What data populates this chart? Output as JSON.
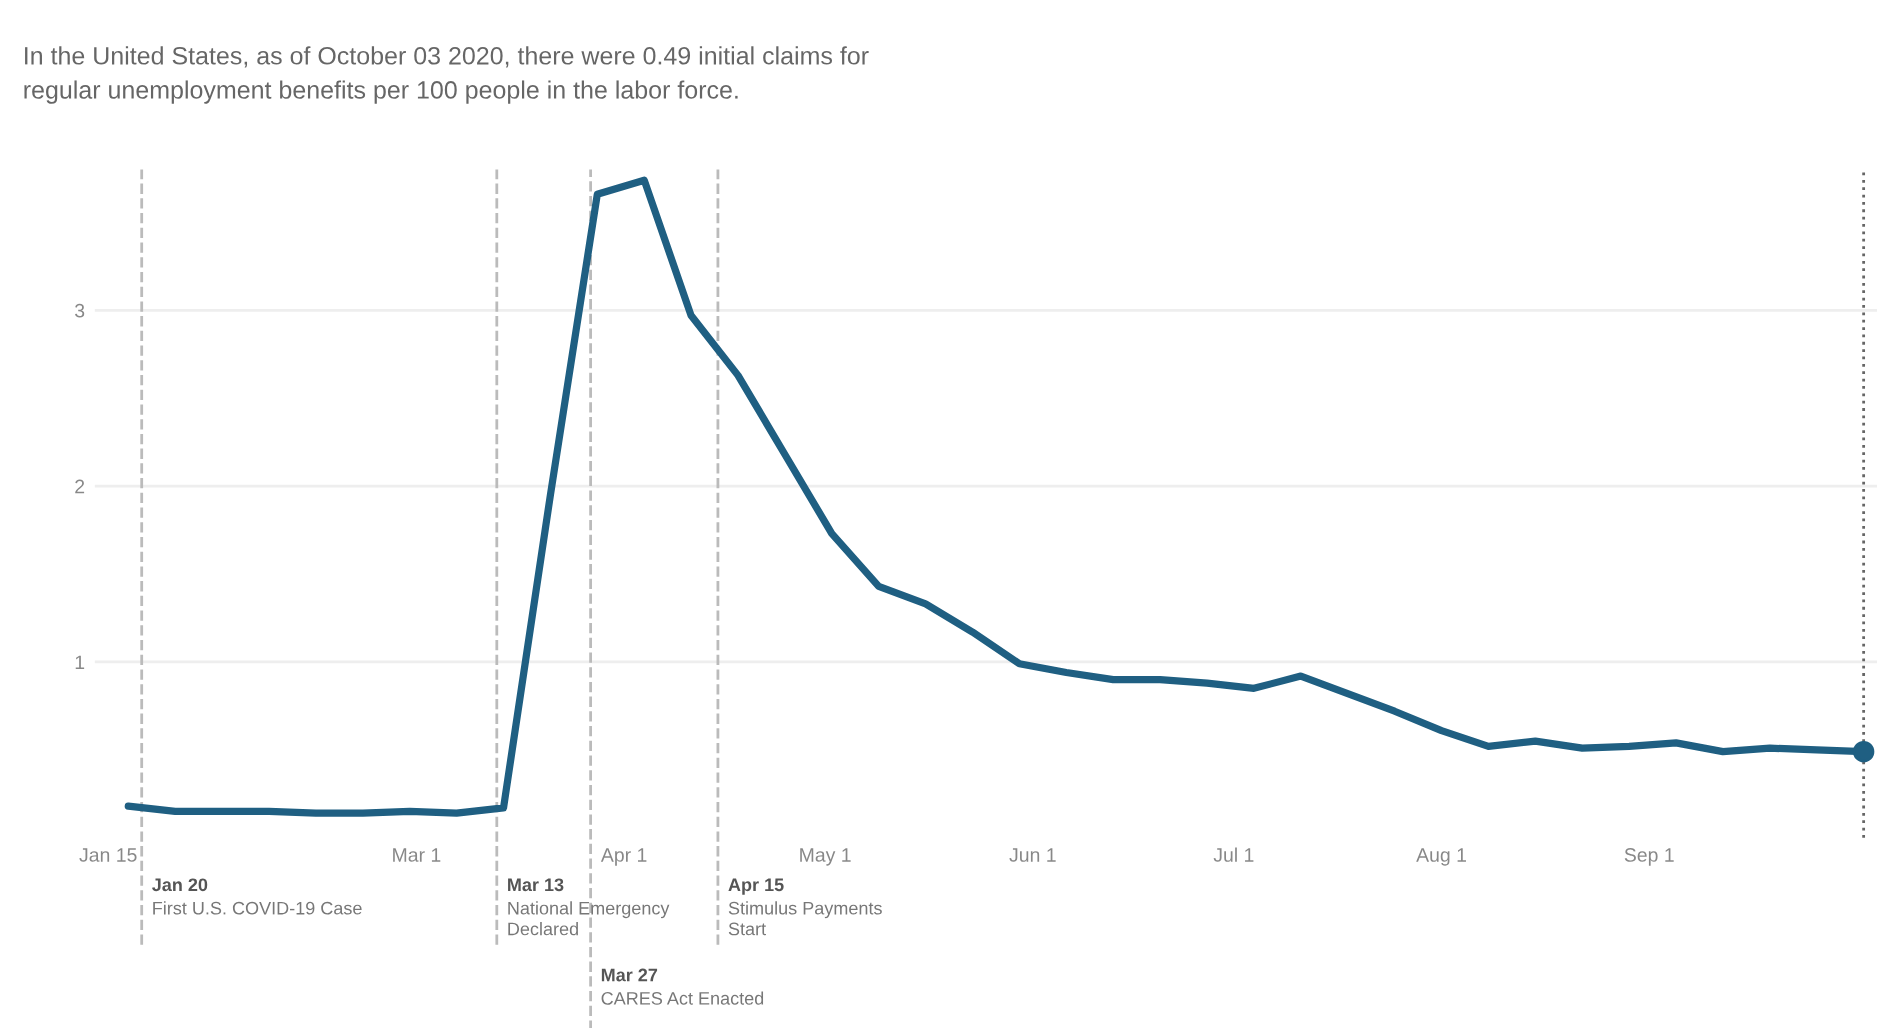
{
  "chart_data": {
    "type": "line",
    "title": "In the United States, as of October 03 2020, there were 0.49 initial claims for\nregular unemployment benefits per 100 people in the labor force.",
    "x": [
      "2020-01-18",
      "2020-01-25",
      "2020-02-01",
      "2020-02-08",
      "2020-02-15",
      "2020-02-22",
      "2020-02-29",
      "2020-03-07",
      "2020-03-14",
      "2020-03-21",
      "2020-03-28",
      "2020-04-04",
      "2020-04-11",
      "2020-04-18",
      "2020-04-25",
      "2020-05-02",
      "2020-05-09",
      "2020-05-16",
      "2020-05-23",
      "2020-05-30",
      "2020-06-06",
      "2020-06-13",
      "2020-06-20",
      "2020-06-27",
      "2020-07-04",
      "2020-07-11",
      "2020-07-18",
      "2020-07-25",
      "2020-08-01",
      "2020-08-08",
      "2020-08-15",
      "2020-08-22",
      "2020-08-29",
      "2020-09-05",
      "2020-09-12",
      "2020-09-19",
      "2020-09-26",
      "2020-10-03"
    ],
    "series": [
      {
        "color": "#1f5f82",
        "values": [
          0.18,
          0.15,
          0.15,
          0.15,
          0.14,
          0.14,
          0.15,
          0.14,
          0.17,
          1.95,
          3.66,
          3.74,
          2.97,
          2.63,
          2.18,
          1.73,
          1.43,
          1.33,
          1.17,
          0.99,
          0.94,
          0.9,
          0.9,
          0.88,
          0.85,
          0.92,
          0.82,
          0.72,
          0.61,
          0.52,
          0.55,
          0.51,
          0.52,
          0.54,
          0.49,
          0.51,
          0.5,
          0.49
        ]
      },
      {
        "type": "scatter",
        "color": "#1f5f82",
        "x": [
          "2020-10-03"
        ],
        "values": [
          0.49
        ],
        "marker": "circle"
      }
    ],
    "xlim": [
      "2020-01-13",
      "2020-10-05"
    ],
    "xticks": [
      {
        "value": "2020-01-15",
        "label": "Jan 15"
      },
      {
        "value": "2020-03-01",
        "label": "Mar 1"
      },
      {
        "value": "2020-04-01",
        "label": "Apr 1"
      },
      {
        "value": "2020-05-01",
        "label": "May 1"
      },
      {
        "value": "2020-06-01",
        "label": "Jun 1"
      },
      {
        "value": "2020-07-01",
        "label": "Jul 1"
      },
      {
        "value": "2020-08-01",
        "label": "Aug 1"
      },
      {
        "value": "2020-09-01",
        "label": "Sep 1"
      }
    ],
    "ylim": [
      0,
      3.8
    ],
    "yticks": [
      1,
      2,
      3
    ],
    "grid": "y",
    "marker": "none",
    "line_style": "solid",
    "ref_lines": [
      {
        "axis": "x",
        "value": "2020-01-20",
        "label": "Jan 20\nFirst U.S. COVID-19 Case",
        "color": "#bbbbbb",
        "line_style": "dashed"
      },
      {
        "axis": "x",
        "value": "2020-03-13",
        "label": "Mar 13\nNational Emergency\nDeclared",
        "color": "#bbbbbb",
        "line_style": "dashed"
      },
      {
        "axis": "x",
        "value": "2020-03-27",
        "label": "Mar 27\nCARES Act Enacted",
        "color": "#bbbbbb",
        "line_style": "dashed"
      },
      {
        "axis": "x",
        "value": "2020-04-15",
        "label": "Apr 15\nStimulus Payments\nStart",
        "color": "#bbbbbb",
        "line_style": "dashed"
      },
      {
        "axis": "x",
        "value": "2020-10-03",
        "label": null,
        "color": "#666666",
        "line_style": "dotted"
      }
    ]
  }
}
